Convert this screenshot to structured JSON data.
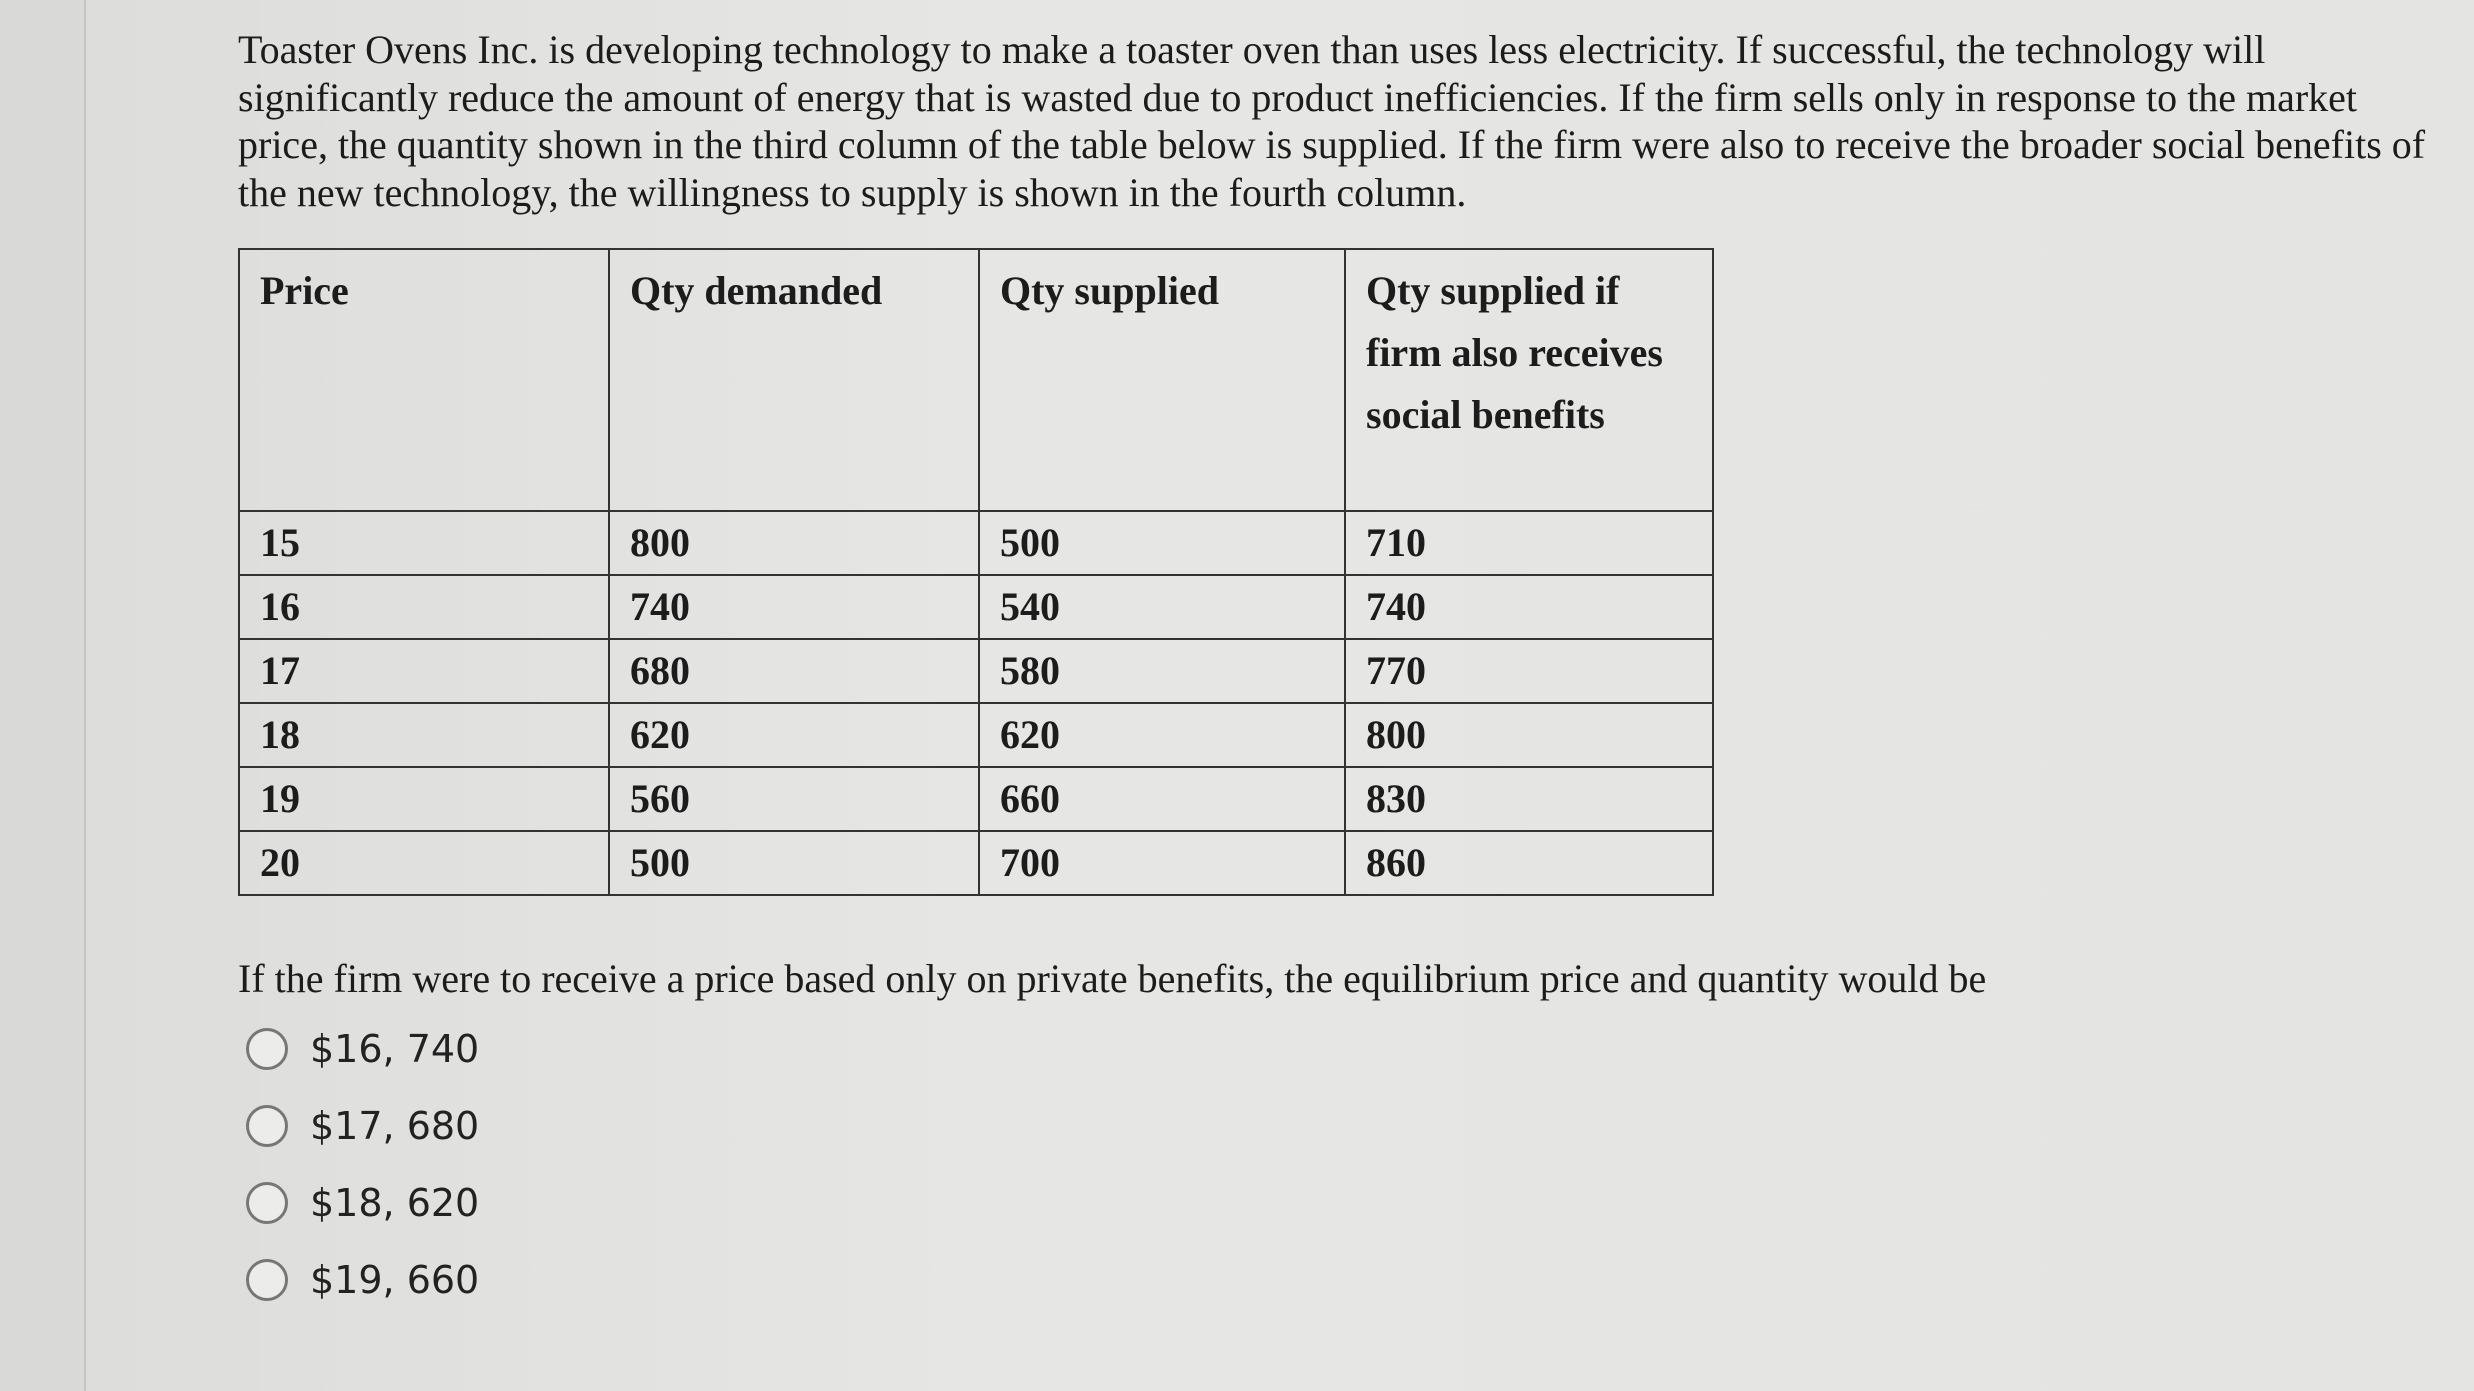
{
  "intro": "Toaster Ovens Inc. is developing technology to make a toaster oven than uses less electricity. If successful, the technology will significantly reduce the amount of energy that is wasted due to product inefficiencies. If the firm sells only in response to the market price, the quantity shown in the third column of the table below is supplied. If the firm were also to receive the broader social benefits of the new technology, the willingness to supply is shown in the fourth column.",
  "table": {
    "headers": [
      "Price",
      "Qty demanded",
      "Qty supplied",
      "Qty supplied if firm also receives social benefits"
    ],
    "rows": [
      [
        "15",
        "800",
        "500",
        "710"
      ],
      [
        "16",
        "740",
        "540",
        "740"
      ],
      [
        "17",
        "680",
        "580",
        "770"
      ],
      [
        "18",
        "620",
        "620",
        "800"
      ],
      [
        "19",
        "560",
        "660",
        "830"
      ],
      [
        "20",
        "500",
        "700",
        "860"
      ]
    ]
  },
  "question": "If the firm were to receive a price based only on private benefits, the equilibrium price and quantity would be",
  "options": [
    "$16, 740",
    "$17, 680",
    "$18, 620",
    "$19, 660"
  ]
}
